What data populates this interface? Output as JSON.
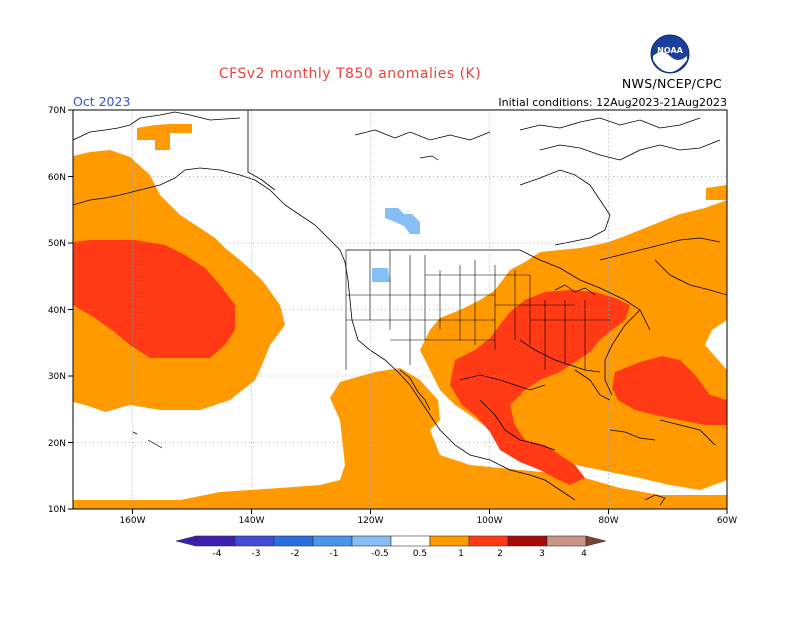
{
  "header": {
    "title": "CFSv2 monthly T850 anomalies (K)",
    "period": "Oct 2023",
    "initial_conditions": "Initial conditions: 12Aug2023-21Aug2023",
    "agency": "NWS/NCEP/CPC",
    "logo_text": "NOAA"
  },
  "map": {
    "projection": "lat-lon",
    "lon_range": [
      -170,
      -60
    ],
    "lat_range": [
      10,
      70
    ],
    "lat_labels": [
      "70N",
      "60N",
      "50N",
      "40N",
      "30N",
      "20N",
      "10N"
    ],
    "lon_labels": [
      "160W",
      "140W",
      "120W",
      "100W",
      "80W",
      "60W"
    ],
    "grid": true,
    "grid_style": "dotted",
    "anomaly_regions": [
      {
        "region": "North Pacific",
        "level": "0.5 to 1"
      },
      {
        "region": "North Pacific center",
        "level": "1 to 2"
      },
      {
        "region": "Tropical eastern Pacific",
        "level": "0.5 to 1"
      },
      {
        "region": "Eastern United States and Gulf of Mexico",
        "level": "0.5 to 1"
      },
      {
        "region": "Southeastern US and Mexico",
        "level": "1 to 2"
      },
      {
        "region": "Western Atlantic",
        "level": "1 to 2"
      },
      {
        "region": "Hudson Bay area",
        "level": "-1 to -0.5"
      }
    ]
  },
  "colorbar": {
    "labels": [
      "-4",
      "-3",
      "-2",
      "-1",
      "-0.5",
      "0.5",
      "1",
      "2",
      "3",
      "4"
    ],
    "colors": [
      "#3a1fb0",
      "#3f4ad6",
      "#2a6fe0",
      "#4a95ec",
      "#86bff5",
      "#ffffff",
      "#ff9a00",
      "#ff3a14",
      "#a40a0a",
      "#c9958a",
      "#7a4434"
    ],
    "units": "K"
  }
}
